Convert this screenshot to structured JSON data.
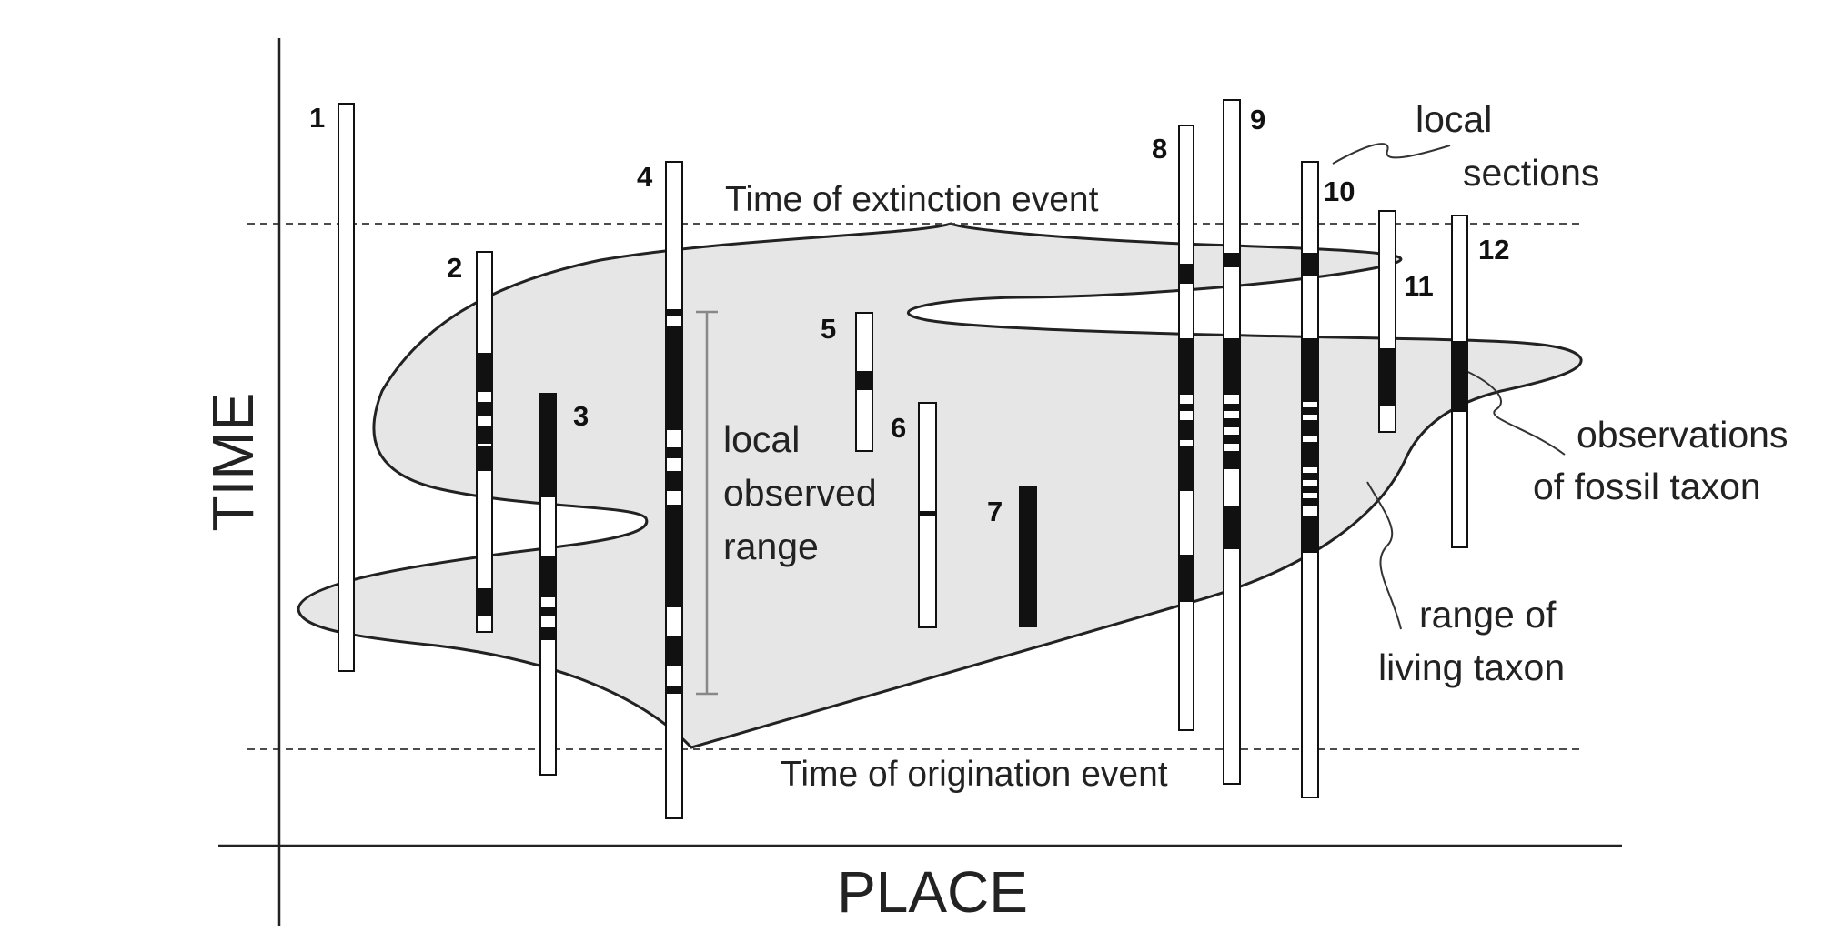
{
  "axes": {
    "x_title": "PLACE",
    "y_title": "TIME"
  },
  "events": {
    "extinction": "Time of extinction event",
    "origination": "Time of origination event"
  },
  "annotations": {
    "local_sections": [
      "local",
      "sections"
    ],
    "local_observed_range": [
      "local",
      "observed",
      "range"
    ],
    "observations": [
      "observations",
      "of fossil taxon"
    ],
    "range_of_living_taxon": [
      "range of",
      "living taxon"
    ]
  },
  "sections": [
    {
      "id": "1",
      "label": "1"
    },
    {
      "id": "2",
      "label": "2"
    },
    {
      "id": "3",
      "label": "3"
    },
    {
      "id": "4",
      "label": "4"
    },
    {
      "id": "5",
      "label": "5"
    },
    {
      "id": "6",
      "label": "6"
    },
    {
      "id": "7",
      "label": "7"
    },
    {
      "id": "8",
      "label": "8"
    },
    {
      "id": "9",
      "label": "9"
    },
    {
      "id": "10",
      "label": "10"
    },
    {
      "id": "11",
      "label": "11"
    },
    {
      "id": "12",
      "label": "12"
    }
  ],
  "colors": {
    "range_fill": "#e6e6e6",
    "ink": "#111111",
    "bracket": "#888888"
  }
}
